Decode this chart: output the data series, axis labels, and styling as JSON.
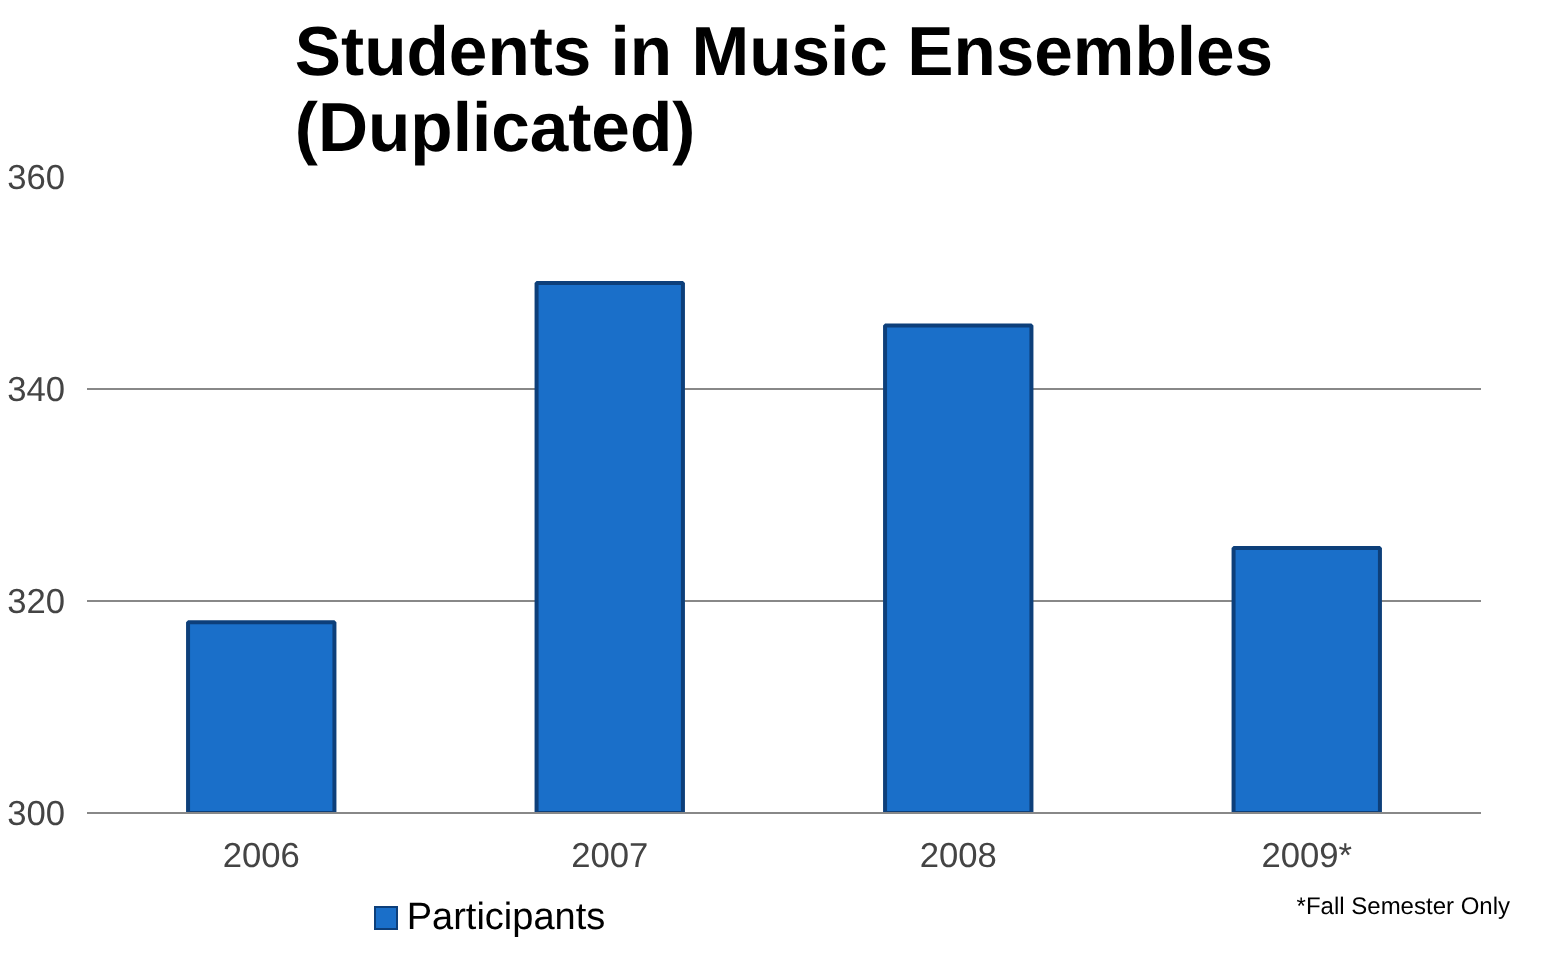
{
  "chart_data": {
    "type": "bar",
    "title": "Students in Music Ensembles (Duplicated)",
    "categories": [
      "2006",
      "2007",
      "2008",
      "2009*"
    ],
    "series": [
      {
        "name": "Participants",
        "color": "#1a6fc9",
        "values": [
          318,
          350,
          346,
          325
        ]
      }
    ],
    "ylim": [
      300,
      360
    ],
    "yticks": [
      300,
      320,
      340,
      360
    ],
    "grid": "y",
    "legend": "bottom",
    "annotations": [
      "*Fall Semester Only"
    ]
  }
}
